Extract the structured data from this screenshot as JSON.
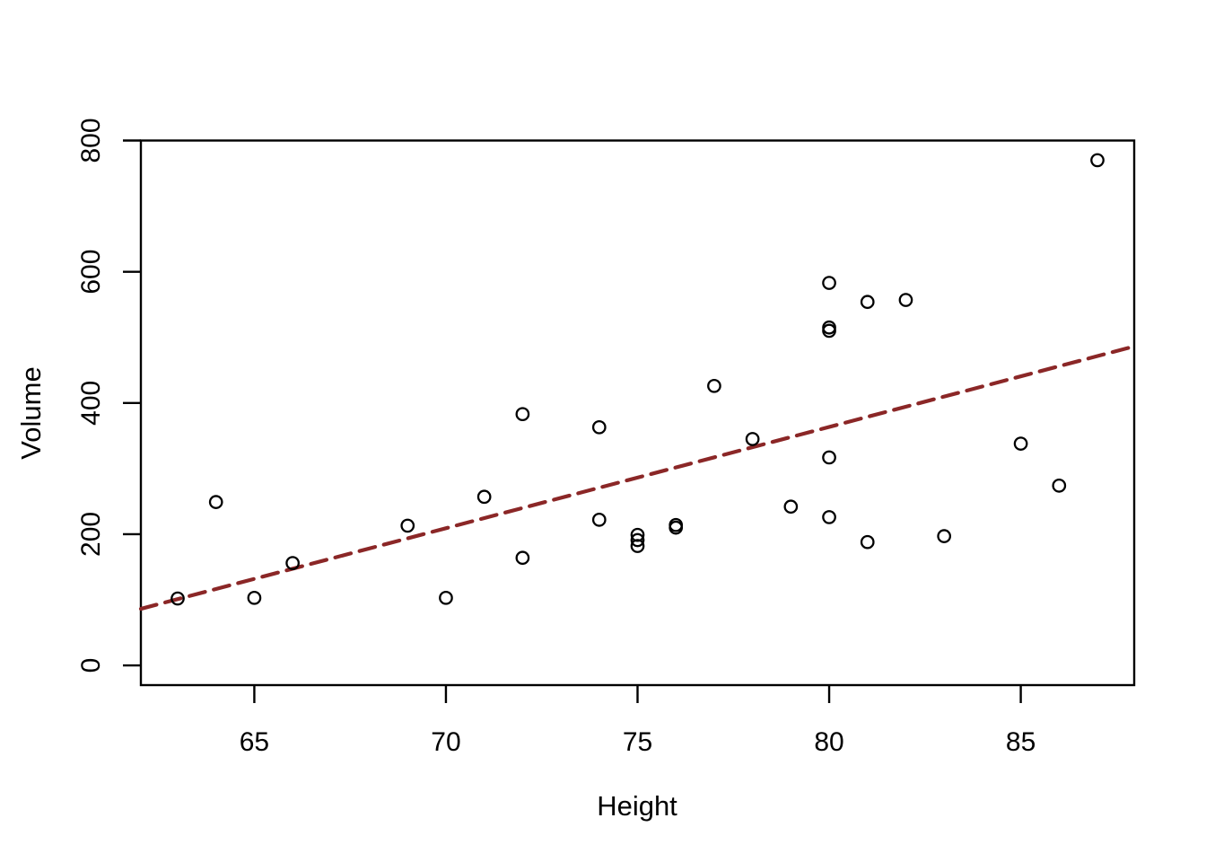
{
  "figure": {
    "background": "#ffffff",
    "axis_color": "#000000",
    "title": ""
  },
  "chart_data": {
    "type": "scatter",
    "title": "",
    "xlabel": "Height",
    "ylabel": "Volume",
    "xlim": [
      62.04,
      87.96
    ],
    "ylim": [
      -30,
      800
    ],
    "x_ticks": [
      65,
      70,
      75,
      80,
      85
    ],
    "y_ticks": [
      0,
      200,
      400,
      600,
      800
    ],
    "grid": false,
    "legend": null,
    "marker": {
      "shape": "open-circle",
      "radius": 6.7,
      "stroke": "#000000",
      "stroke_width": 2.3
    },
    "points": [
      {
        "height": 70,
        "volume": 103
      },
      {
        "height": 65,
        "volume": 103
      },
      {
        "height": 63,
        "volume": 102
      },
      {
        "height": 72,
        "volume": 164
      },
      {
        "height": 81,
        "volume": 188
      },
      {
        "height": 83,
        "volume": 197
      },
      {
        "height": 66,
        "volume": 156
      },
      {
        "height": 75,
        "volume": 182
      },
      {
        "height": 80,
        "volume": 226
      },
      {
        "height": 75,
        "volume": 199
      },
      {
        "height": 79,
        "volume": 242
      },
      {
        "height": 76,
        "volume": 210
      },
      {
        "height": 76,
        "volume": 214
      },
      {
        "height": 69,
        "volume": 213
      },
      {
        "height": 75,
        "volume": 191
      },
      {
        "height": 74,
        "volume": 222
      },
      {
        "height": 85,
        "volume": 338
      },
      {
        "height": 86,
        "volume": 274
      },
      {
        "height": 71,
        "volume": 257
      },
      {
        "height": 64,
        "volume": 249
      },
      {
        "height": 78,
        "volume": 345
      },
      {
        "height": 80,
        "volume": 317
      },
      {
        "height": 74,
        "volume": 363
      },
      {
        "height": 72,
        "volume": 383
      },
      {
        "height": 77,
        "volume": 426
      },
      {
        "height": 81,
        "volume": 554
      },
      {
        "height": 82,
        "volume": 557
      },
      {
        "height": 80,
        "volume": 583
      },
      {
        "height": 80,
        "volume": 515
      },
      {
        "height": 80,
        "volume": 510
      },
      {
        "height": 87,
        "volume": 770
      }
    ],
    "trend_line": {
      "type": "linear-regression",
      "slope": 15.4335,
      "intercept": -871.24,
      "color": "#8B2727",
      "line_style": "dashed",
      "stroke_width": 4.2,
      "dash_pattern": [
        18,
        10
      ]
    }
  }
}
